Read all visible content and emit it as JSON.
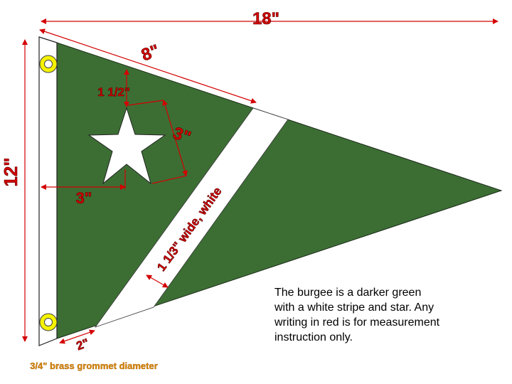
{
  "dimensions": {
    "overall_length": "18\"",
    "hoist_height": "12\"",
    "top_edge_to_stripe": "8\"",
    "star_offset_top": "1 1/2\"",
    "star_size": "3\"",
    "star_offset_hoist": "3\"",
    "stripe_width": "1 1/3\" wide, white",
    "sleeve_width": "2\"",
    "grommet": "3/4\" brass grommet diameter"
  },
  "note": {
    "lines": [
      "The burgee is a darker green",
      "with a white stripe and star.  Any",
      "writing in red is for measurement",
      "instruction only."
    ]
  },
  "colors": {
    "flag_green": "#3c6e34",
    "stripe_white": "#ffffff",
    "measurement_red": "#d40000",
    "grommet_yellow": "#f5f200",
    "grommet_label": "#e08a00"
  }
}
